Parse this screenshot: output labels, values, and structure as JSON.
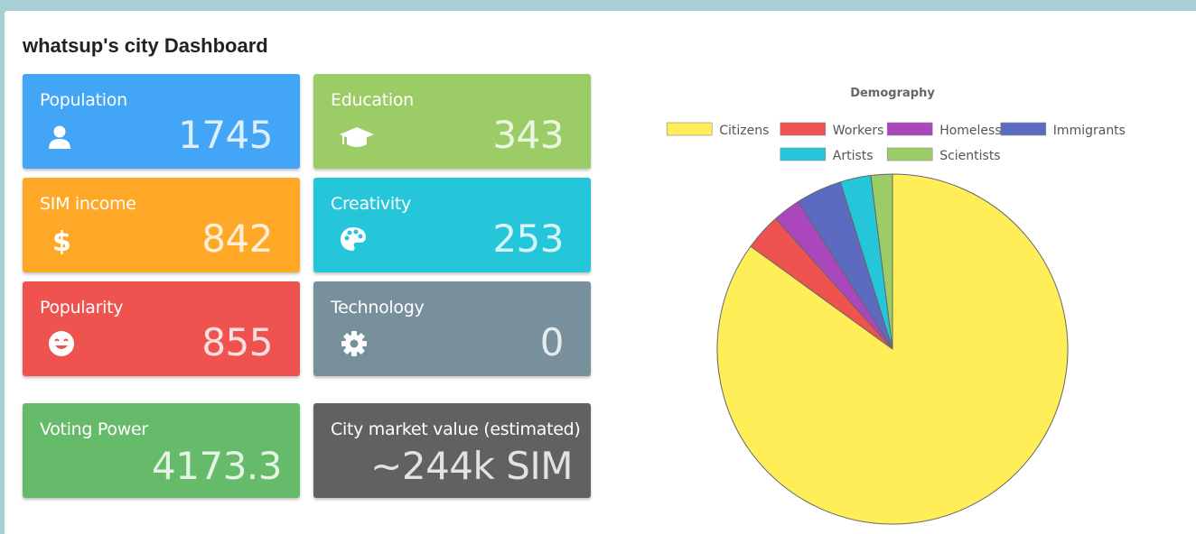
{
  "page": {
    "title": "whatsup's city Dashboard"
  },
  "cards": {
    "population": {
      "label": "Population",
      "value": "1745",
      "icon": "user-icon",
      "color": "#42a5f5"
    },
    "education": {
      "label": "Education",
      "value": "343",
      "icon": "graduation-cap-icon",
      "color": "#9ccc65"
    },
    "sim_income": {
      "label": "SIM income",
      "value": "842",
      "icon": "dollar-icon",
      "color": "#ffa726"
    },
    "creativity": {
      "label": "Creativity",
      "value": "253",
      "icon": "palette-icon",
      "color": "#26c6da"
    },
    "popularity": {
      "label": "Popularity",
      "value": "855",
      "icon": "smile-icon",
      "color": "#ef5350"
    },
    "technology": {
      "label": "Technology",
      "value": "0",
      "icon": "gear-icon",
      "color": "#78909c"
    },
    "voting_power": {
      "label": "Voting Power",
      "value": "4173.3",
      "color": "#66bb6a"
    },
    "city_value": {
      "label": "City market value (estimated)",
      "value": "~244k SIM",
      "color": "#616161"
    }
  },
  "chart_data": {
    "type": "pie",
    "title": "Demography",
    "legend_position": "top",
    "categories": [
      "Citizens",
      "Workers",
      "Homeless",
      "Immigrants",
      "Artists",
      "Scientists"
    ],
    "values": [
      1500,
      60,
      45,
      75,
      50,
      35
    ],
    "colors": [
      "#ffee58",
      "#ef5350",
      "#ab47bc",
      "#5c6bc0",
      "#26c6da",
      "#9ccc65"
    ]
  }
}
